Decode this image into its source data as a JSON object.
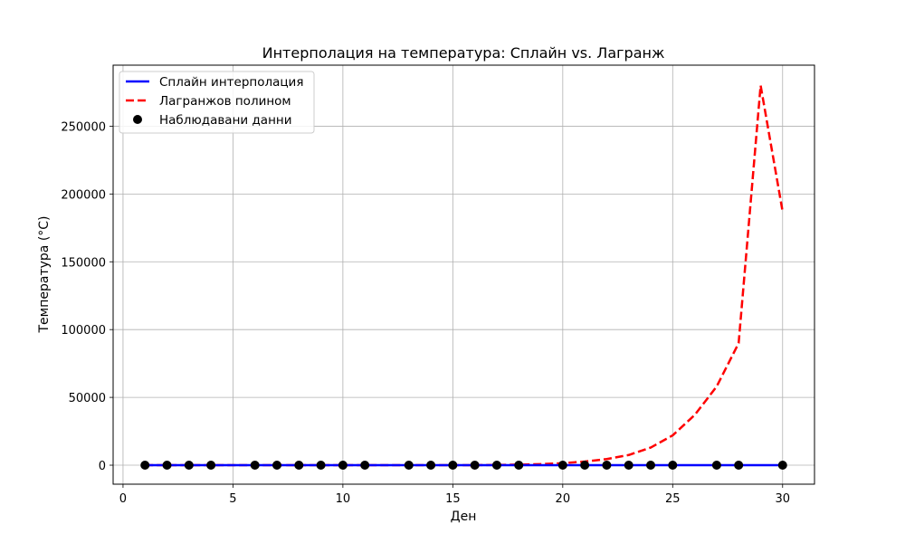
{
  "chart_data": {
    "type": "line",
    "title": "Интерполация на температура: Сплайн vs. Лагранж",
    "xlabel": "Ден",
    "ylabel": "Температура (°C)",
    "xlim": [
      -0.45,
      31.45
    ],
    "ylim": [
      -14000,
      295000
    ],
    "xticks": [
      0,
      5,
      10,
      15,
      20,
      25,
      30
    ],
    "yticks": [
      0,
      50000,
      100000,
      150000,
      200000,
      250000
    ],
    "xtick_labels": [
      "0",
      "5",
      "10",
      "15",
      "20",
      "25",
      "30"
    ],
    "ytick_labels": [
      "0",
      "50000",
      "100000",
      "150000",
      "200000",
      "250000"
    ],
    "grid": true,
    "legend_position": "top-left",
    "series": [
      {
        "name": "Сплайн интерполация",
        "style": "solid",
        "color": "#0000ff",
        "x": [
          1,
          30
        ],
        "y": [
          0,
          0
        ]
      },
      {
        "name": "Лагранжов полином",
        "style": "dashed",
        "color": "#ff0000",
        "x": [
          1,
          2,
          3,
          4,
          5,
          6,
          7,
          8,
          9,
          10,
          11,
          12,
          13,
          14,
          15,
          16,
          17,
          18,
          19,
          20,
          21,
          22,
          23,
          24,
          25,
          26,
          27,
          28,
          29,
          30
        ],
        "y": [
          0,
          0,
          0,
          0,
          0,
          0,
          0,
          0,
          0,
          0,
          0,
          0,
          0,
          0,
          0,
          0,
          200,
          400,
          800,
          1500,
          2700,
          4500,
          7500,
          13000,
          22000,
          37000,
          58000,
          90000,
          280000,
          187000
        ]
      },
      {
        "name": "Наблюдавани данни",
        "style": "markers",
        "color": "#000000",
        "x": [
          1,
          2,
          3,
          4,
          6,
          7,
          8,
          9,
          10,
          11,
          13,
          14,
          15,
          16,
          17,
          18,
          20,
          21,
          22,
          23,
          24,
          25,
          27,
          28,
          30
        ],
        "y": [
          0,
          0,
          0,
          0,
          0,
          0,
          0,
          0,
          0,
          0,
          0,
          0,
          0,
          0,
          0,
          0,
          0,
          0,
          0,
          0,
          0,
          0,
          0,
          0,
          0
        ]
      }
    ]
  }
}
